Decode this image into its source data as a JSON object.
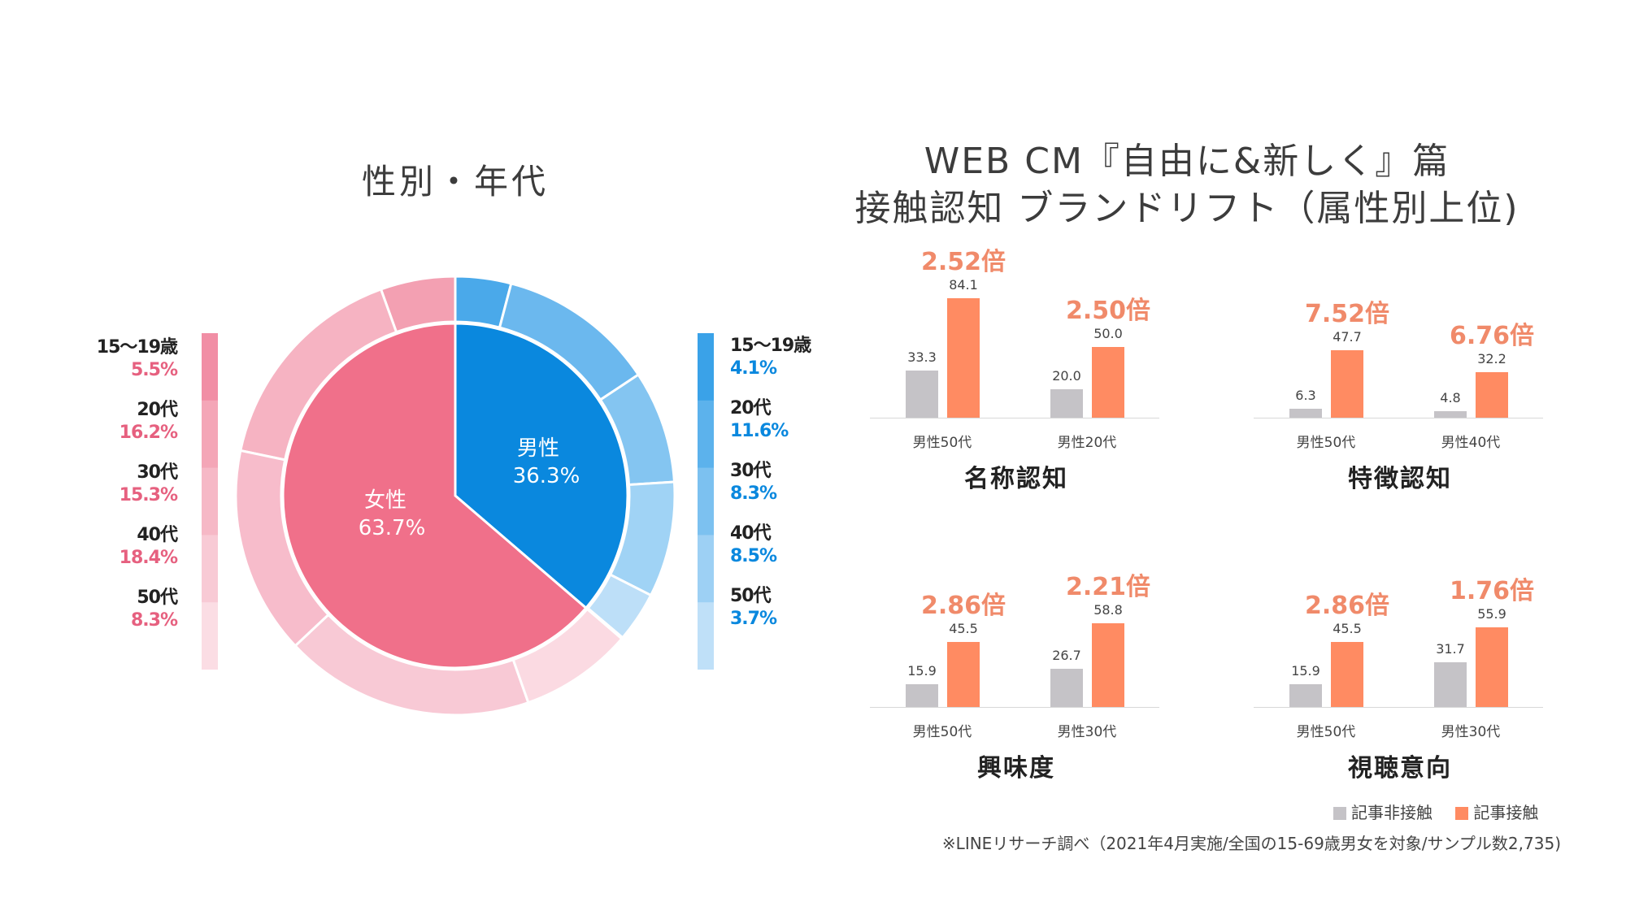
{
  "colors": {
    "female": "#f0708a",
    "male": "#0a88de",
    "bar_no": "#c5c3c7",
    "bar_yes": "#ff8b62",
    "ratio": "#f08a6a",
    "female_text": "#e6607f",
    "male_text": "#0a88de"
  },
  "left_title": "性別・年代",
  "right_title": {
    "line1": "WEB CM『自由に&新しく』篇",
    "line2": "接触認知 ブランドリフト（属性別上位)"
  },
  "chart_data": [
    {
      "type": "pie",
      "title": "性別・年代",
      "inner": [
        {
          "label": "男性",
          "value": 36.3,
          "display": "36.3%"
        },
        {
          "label": "女性",
          "value": 63.7,
          "display": "63.7%"
        }
      ],
      "outer_male": [
        {
          "age": "15〜19歳",
          "value": 4.1,
          "display": "4.1%"
        },
        {
          "age": "20代",
          "value": 11.6,
          "display": "11.6%"
        },
        {
          "age": "30代",
          "value": 8.3,
          "display": "8.3%"
        },
        {
          "age": "40代",
          "value": 8.5,
          "display": "8.5%"
        },
        {
          "age": "50代",
          "value": 3.7,
          "display": "3.7%"
        }
      ],
      "outer_female": [
        {
          "age": "15〜19歳",
          "value": 5.5,
          "display": "5.5%"
        },
        {
          "age": "20代",
          "value": 16.2,
          "display": "16.2%"
        },
        {
          "age": "30代",
          "value": 15.3,
          "display": "15.3%"
        },
        {
          "age": "40代",
          "value": 18.4,
          "display": "18.4%"
        },
        {
          "age": "50代",
          "value": 8.3,
          "display": "8.3%"
        }
      ]
    },
    {
      "type": "bar",
      "title": "名称認知",
      "categories": [
        "男性50代",
        "男性20代"
      ],
      "series": [
        {
          "name": "記事非接触",
          "values": [
            33.3,
            20.0
          ],
          "labels": [
            "33.3",
            "20.0"
          ]
        },
        {
          "name": "記事接触",
          "values": [
            84.1,
            50.0
          ],
          "labels": [
            "84.1",
            "50.0"
          ]
        }
      ],
      "ratios": [
        "2.52倍",
        "2.50倍"
      ]
    },
    {
      "type": "bar",
      "title": "特徴認知",
      "categories": [
        "男性50代",
        "男性40代"
      ],
      "series": [
        {
          "name": "記事非接触",
          "values": [
            6.3,
            4.8
          ],
          "labels": [
            "6.3",
            "4.8"
          ]
        },
        {
          "name": "記事接触",
          "values": [
            47.7,
            32.2
          ],
          "labels": [
            "47.7",
            "32.2"
          ]
        }
      ],
      "ratios": [
        "7.52倍",
        "6.76倍"
      ]
    },
    {
      "type": "bar",
      "title": "興味度",
      "categories": [
        "男性50代",
        "男性30代"
      ],
      "series": [
        {
          "name": "記事非接触",
          "values": [
            15.9,
            26.7
          ],
          "labels": [
            "15.9",
            "26.7"
          ]
        },
        {
          "name": "記事接触",
          "values": [
            45.5,
            58.8
          ],
          "labels": [
            "45.5",
            "58.8"
          ]
        }
      ],
      "ratios": [
        "2.86倍",
        "2.21倍"
      ]
    },
    {
      "type": "bar",
      "title": "視聴意向",
      "categories": [
        "男性50代",
        "男性30代"
      ],
      "series": [
        {
          "name": "記事非接触",
          "values": [
            15.9,
            31.7
          ],
          "labels": [
            "15.9",
            "31.7"
          ]
        },
        {
          "name": "記事接触",
          "values": [
            45.5,
            55.9
          ],
          "labels": [
            "45.5",
            "55.9"
          ]
        }
      ],
      "ratios": [
        "2.86倍",
        "1.76倍"
      ]
    }
  ],
  "legend": {
    "no_contact": "記事非接触",
    "contact": "記事接触"
  },
  "footnote": "※LINEリサーチ調べ（2021年4月実施/全国の15-69歳男女を対象/サンプル数2,735)"
}
